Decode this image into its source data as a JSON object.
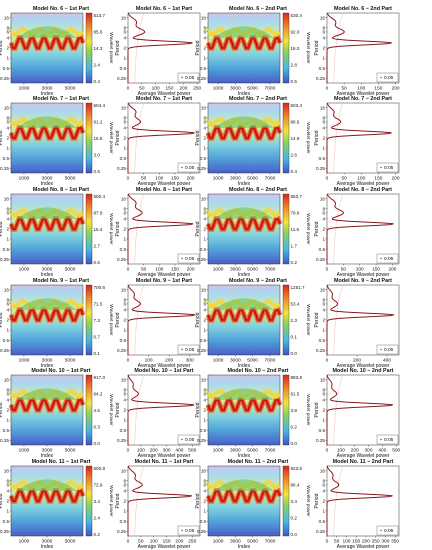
{
  "figure": {
    "ylabel": "Period",
    "cbar_label": "Wavelet power",
    "avg_xlabel": "Average Wavelet power",
    "legend_text": "0.05",
    "period_ticks": [
      "16",
      "8",
      "6",
      "4",
      "2",
      "1",
      "0.5",
      "0.25"
    ]
  },
  "chart_data": [
    {
      "type": "heatmap",
      "title": "Model No. 6 − 1st Part",
      "xlabel": "Index",
      "ylabel": "Period",
      "x_ticks": [
        "1000",
        "3000",
        "5000"
      ],
      "colorbar": {
        "label": "Wavelet power",
        "ticks": [
          "513.7",
          "85.6",
          "14.3",
          "2.4",
          "0.4"
        ]
      }
    },
    {
      "type": "line",
      "title": "Model No. 6 − 1st Part",
      "xlabel": "Average Wavelet power",
      "ylabel": "Period",
      "x_ticks": [
        "0",
        "50",
        "100",
        "150",
        "200",
        "250"
      ],
      "xlim": [
        0,
        260
      ],
      "peaks": [
        {
          "period": 2.8,
          "power": 235
        },
        {
          "period": 6,
          "power": 60
        },
        {
          "period": 12,
          "power": 30
        }
      ],
      "legend": "0.05"
    },
    {
      "type": "heatmap",
      "title": "Model No. 6 − 2nd Part",
      "xlabel": "Index",
      "ylabel": "Period",
      "x_ticks": [
        "1000",
        "3000",
        "5000",
        "7000"
      ],
      "colorbar": {
        "label": "Wavelet power",
        "ticks": [
          "530.4",
          "92.0",
          "16.0",
          "2.8",
          "0.5"
        ]
      }
    },
    {
      "type": "line",
      "title": "Model No. 6 − 2nd Part",
      "xlabel": "Average Wavelet power",
      "ylabel": "Period",
      "x_ticks": [
        "0",
        "50",
        "100",
        "150",
        "200"
      ],
      "xlim": [
        0,
        210
      ],
      "peaks": [
        {
          "period": 2.8,
          "power": 190
        },
        {
          "period": 6,
          "power": 50
        },
        {
          "period": 12,
          "power": 25
        }
      ],
      "legend": "0.05"
    },
    {
      "type": "heatmap",
      "title": "Model No. 7 − 1st Part",
      "xlabel": "Index",
      "ylabel": "Period",
      "x_ticks": [
        "1000",
        "3000",
        "5000"
      ],
      "colorbar": {
        "label": "Wavelet power",
        "ticks": [
          "504.4",
          "91.2",
          "16.5",
          "3.0",
          "0.5"
        ]
      }
    },
    {
      "type": "line",
      "title": "Model No. 7 − 1st Part",
      "xlabel": "Average Wavelet power",
      "ylabel": "Period",
      "x_ticks": [
        "0",
        "50",
        "100",
        "150",
        "200"
      ],
      "xlim": [
        0,
        230
      ],
      "peaks": [
        {
          "period": 2.8,
          "power": 215
        },
        {
          "period": 6,
          "power": 40
        },
        {
          "period": 12,
          "power": 25
        }
      ],
      "legend": "0.05"
    },
    {
      "type": "heatmap",
      "title": "Model No. 7 − 2nd Part",
      "xlabel": "Index",
      "ylabel": "Period",
      "x_ticks": [
        "1000",
        "3000",
        "5000",
        "7000"
      ],
      "colorbar": {
        "label": "Wavelet power",
        "ticks": [
          "503.4",
          "86.6",
          "14.9",
          "2.6",
          "0.4"
        ]
      }
    },
    {
      "type": "line",
      "title": "Model No. 7 − 2nd Part",
      "xlabel": "Average Wavelet power",
      "ylabel": "Period",
      "x_ticks": [
        "0",
        "50",
        "100",
        "150",
        "200"
      ],
      "xlim": [
        0,
        210
      ],
      "peaks": [
        {
          "period": 2.8,
          "power": 190
        },
        {
          "period": 6,
          "power": 40
        },
        {
          "period": 12,
          "power": 20
        }
      ],
      "legend": "0.05"
    },
    {
      "type": "heatmap",
      "title": "Model No. 8 − 1st Part",
      "xlabel": "Index",
      "ylabel": "Period",
      "x_ticks": [
        "1000",
        "3000",
        "5000"
      ],
      "colorbar": {
        "label": "Wavelet power",
        "ticks": [
          "500.4",
          "87.9",
          "15.4",
          "2.7",
          "0.5"
        ]
      }
    },
    {
      "type": "line",
      "title": "Model No. 8 − 1st Part",
      "xlabel": "Average Wavelet power",
      "ylabel": "Period",
      "x_ticks": [
        "0",
        "50",
        "100",
        "150",
        "200"
      ],
      "xlim": [
        0,
        230
      ],
      "peaks": [
        {
          "period": 2.8,
          "power": 210
        },
        {
          "period": 6,
          "power": 45
        },
        {
          "period": 12,
          "power": 25
        }
      ],
      "legend": "0.05"
    },
    {
      "type": "heatmap",
      "title": "Model No. 8 − 2nd Part",
      "xlabel": "Index",
      "ylabel": "Period",
      "x_ticks": [
        "1000",
        "3000",
        "5000",
        "7000"
      ],
      "colorbar": {
        "label": "Wavelet power",
        "ticks": [
          "553.7",
          "79.8",
          "11.5",
          "1.7",
          "0.2"
        ]
      }
    },
    {
      "type": "line",
      "title": "Model No. 8 − 2nd Part",
      "xlabel": "Average Wavelet power",
      "ylabel": "Period",
      "x_ticks": [
        "0",
        "50",
        "100",
        "150",
        "200"
      ],
      "xlim": [
        0,
        220
      ],
      "peaks": [
        {
          "period": 2.8,
          "power": 205
        },
        {
          "period": 6,
          "power": 50
        },
        {
          "period": 12,
          "power": 25
        }
      ],
      "legend": "0.05"
    },
    {
      "type": "heatmap",
      "title": "Model No. 9 − 1st Part",
      "xlabel": "Index",
      "ylabel": "Period",
      "x_ticks": [
        "1000",
        "3000",
        "5000"
      ],
      "colorbar": {
        "label": "Wavelet power",
        "ticks": [
          "700.6",
          "71.5",
          "7.3",
          "0.7",
          "0.1"
        ]
      }
    },
    {
      "type": "line",
      "title": "Model No. 9 − 1st Part",
      "xlabel": "Average Wavelet power",
      "ylabel": "Period",
      "x_ticks": [
        "0",
        "100",
        "200",
        "300"
      ],
      "xlim": [
        0,
        350
      ],
      "peaks": [
        {
          "period": 2.8,
          "power": 330
        },
        {
          "period": 6,
          "power": 60
        },
        {
          "period": 12,
          "power": 30
        }
      ],
      "legend": "0.05"
    },
    {
      "type": "heatmap",
      "title": "Model No. 9 − 2nd Part",
      "xlabel": "Index",
      "ylabel": "Period",
      "x_ticks": [
        "1000",
        "3000",
        "5000",
        "7000"
      ],
      "colorbar": {
        "label": "Wavelet power",
        "ticks": [
          "1251.7",
          "53.4",
          "2.3",
          "0.1",
          "0.0"
        ]
      }
    },
    {
      "type": "line",
      "title": "Model No. 9 − 2nd Part",
      "xlabel": "Average Wavelet power",
      "ylabel": "Period",
      "x_ticks": [
        "0",
        "200",
        "400"
      ],
      "xlim": [
        0,
        480
      ],
      "peaks": [
        {
          "period": 2.8,
          "power": 450
        },
        {
          "period": 6,
          "power": 70
        },
        {
          "period": 12,
          "power": 35
        }
      ],
      "legend": "0.05"
    },
    {
      "type": "heatmap",
      "title": "Model No. 10 − 1st Part",
      "xlabel": "Index",
      "ylabel": "Period",
      "x_ticks": [
        "1000",
        "3000",
        "5000"
      ],
      "colorbar": {
        "label": "Wavelet power",
        "ticks": [
          "917.0",
          "64.2",
          "4.5",
          "0.3",
          "0.0"
        ]
      }
    },
    {
      "type": "line",
      "title": "Model No. 10 − 1st Part",
      "xlabel": "Average Wavelet power",
      "ylabel": "Period",
      "x_ticks": [
        "0",
        "100",
        "200",
        "300",
        "400",
        "500"
      ],
      "xlim": [
        0,
        560
      ],
      "peaks": [
        {
          "period": 2.8,
          "power": 520
        },
        {
          "period": 6,
          "power": 80
        },
        {
          "period": 12,
          "power": 40
        }
      ],
      "legend": "0.05"
    },
    {
      "type": "heatmap",
      "title": "Model No. 10 − 2nd Part",
      "xlabel": "Index",
      "ylabel": "Period",
      "x_ticks": [
        "1000",
        "3000",
        "5000",
        "7000"
      ],
      "colorbar": {
        "label": "Wavelet power",
        "ticks": [
          "983.6",
          "61.5",
          "3.8",
          "0.2",
          "0.0"
        ]
      }
    },
    {
      "type": "line",
      "title": "Model No. 10 − 2nd Part",
      "xlabel": "Average Wavelet power",
      "ylabel": "Period",
      "x_ticks": [
        "0",
        "100",
        "200",
        "300",
        "400",
        "500"
      ],
      "xlim": [
        0,
        520
      ],
      "peaks": [
        {
          "period": 2.8,
          "power": 480
        },
        {
          "period": 6,
          "power": 70
        },
        {
          "period": 12,
          "power": 35
        }
      ],
      "legend": "0.05"
    },
    {
      "type": "heatmap",
      "title": "Model No. 11 − 1st Part",
      "xlabel": "Index",
      "ylabel": "Period",
      "x_ticks": [
        "1000",
        "3000",
        "5000"
      ],
      "colorbar": {
        "label": "Wavelet power",
        "ticks": [
          "600.8",
          "72.9",
          "3.4",
          "2.4",
          "0.2"
        ]
      }
    },
    {
      "type": "line",
      "title": "Model No. 11 − 1st Part",
      "xlabel": "Average Wavelet power",
      "ylabel": "Period",
      "x_ticks": [
        "0",
        "50",
        "100",
        "150",
        "200",
        "250"
      ],
      "xlim": [
        0,
        280
      ],
      "peaks": [
        {
          "period": 2.8,
          "power": 250
        },
        {
          "period": 6,
          "power": 55
        },
        {
          "period": 12,
          "power": 28
        }
      ],
      "legend": "0.05"
    },
    {
      "type": "heatmap",
      "title": "Model No. 11 − 2nd Part",
      "xlabel": "Index",
      "ylabel": "Period",
      "x_ticks": [
        "1000",
        "3000",
        "5000",
        "7000"
      ],
      "colorbar": {
        "label": "Wavelet power",
        "ticks": [
          "823.5",
          "86.4",
          "3.4",
          "0.2",
          "0.0"
        ]
      }
    },
    {
      "type": "line",
      "title": "Model No. 11 − 2nd Part",
      "xlabel": "Average Wavelet power",
      "ylabel": "Period",
      "x_ticks": [
        "0",
        "50",
        "100",
        "150",
        "200",
        "250",
        "300",
        "350"
      ],
      "xlim": [
        0,
        370
      ],
      "peaks": [
        {
          "period": 2.8,
          "power": 340
        },
        {
          "period": 6,
          "power": 60
        },
        {
          "period": 12,
          "power": 30
        }
      ],
      "legend": "0.05"
    }
  ]
}
